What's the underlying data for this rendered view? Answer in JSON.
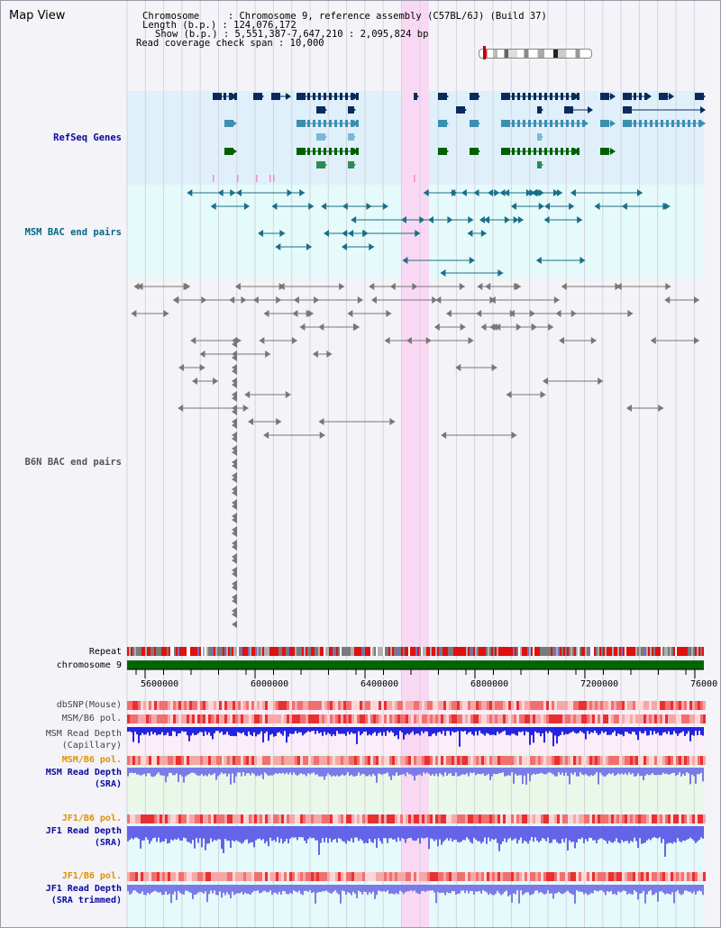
{
  "header": {
    "title": "Map View",
    "chromosome": "Chromosome     : Chromosome 9, reference assembly (C57BL/6J) (Build 37)",
    "length": "Length (b.p.) : 124,076,172",
    "show": "Show (b.p.) : 5,551,387-7,647,210 : 2,095,824 bp",
    "coverage": "Read coverage check span : 10,000"
  },
  "tracks": {
    "refseq": "RefSeq Genes",
    "msm_bac": "MSM BAC end pairs",
    "b6n_bac": "B6N BAC end pairs",
    "repeat": "Repeat",
    "chromosome": "chromosome 9",
    "dbsnp": "dbSNP(Mouse)",
    "msm_b6_pol_cap": "MSM/B6 pol.",
    "msm_depth_cap_1": "MSM Read Depth",
    "msm_depth_cap_2": "(Capillary)",
    "msm_b6_pol_sra": "MSM/B6 pol.",
    "msm_depth_sra_1": "MSM Read Depth",
    "msm_depth_sra_2": "(SRA)",
    "jf1_pol": "JF1/B6 pol.",
    "jf1_depth_1": "JF1 Read Depth",
    "jf1_depth_2": "(SRA)",
    "jf1_pol_trim": "JF1/B6 pol.",
    "jf1_trim_1": "JF1 Read Depth",
    "jf1_trim_2": "(SRA trimmed)"
  },
  "axis": {
    "ticks": [
      "5600000",
      "6000000",
      "6400000",
      "6800000",
      "7200000",
      "76000"
    ]
  },
  "colors": {
    "refseq_bg": "#dff0fb",
    "bac_bg": "#e5fafa",
    "highlight": "#f9d8f3",
    "chromosome_bar": "#006600",
    "label_blue": "#0a0aa0",
    "label_teal": "#006a80",
    "label_orange": "#e09000"
  }
}
